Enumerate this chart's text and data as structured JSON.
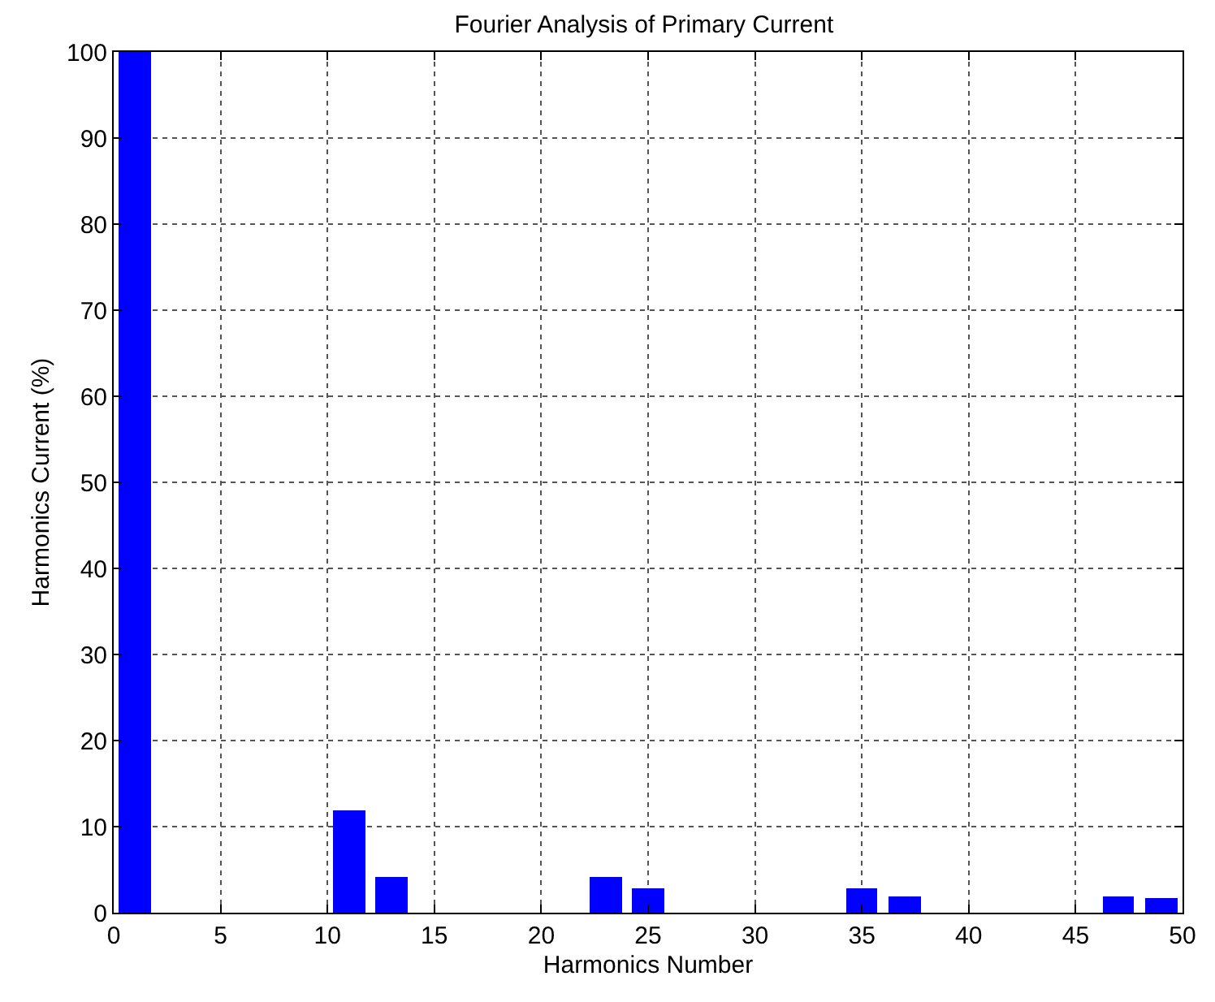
{
  "chart_data": {
    "type": "bar",
    "title": "Fourier Analysis of Primary Current",
    "xlabel": "Harmonics Number",
    "ylabel": "Harmonics Current (%)",
    "x": [
      1,
      11,
      13,
      23,
      25,
      35,
      37,
      47,
      49
    ],
    "values": [
      100,
      11.9,
      4.2,
      4.2,
      2.9,
      2.9,
      1.9,
      1.9,
      1.7
    ],
    "color": "#0000ff",
    "xlim": [
      0,
      50
    ],
    "xticks": [
      0,
      5,
      10,
      15,
      20,
      25,
      30,
      35,
      40,
      45,
      50
    ],
    "ylim": [
      0,
      100
    ],
    "yticks": [
      0,
      10,
      20,
      30,
      40,
      50,
      60,
      70,
      80,
      90,
      100
    ],
    "grid": true
  }
}
